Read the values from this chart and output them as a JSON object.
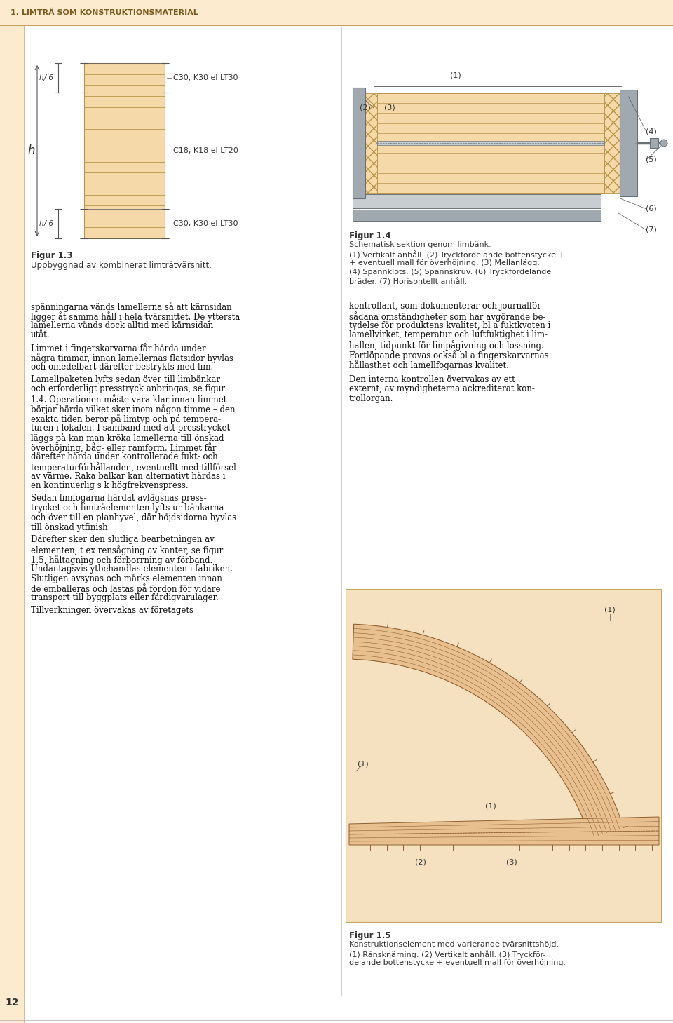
{
  "page_bg": "#ffffff",
  "header_bg": "#fdebd0",
  "header_text": "1. LIMTRÄ SOM KONSTRUKTIONSMATERIAL",
  "header_text_color": "#7a5c1e",
  "sidebar_bg": "#fdebd0",
  "page_number": "12",
  "wood_fill": "#f5d9a8",
  "wood_line": "#b8954a",
  "wood_fill_fig5": "#e8c090",
  "gray_fill": "#a0a8b0",
  "gray_dark": "#6a7278",
  "gray_light": "#c8cdd2",
  "figure1_3_caption_title": "Figur 1.3",
  "figure1_3_caption": "Uppbyggnad av kombinerat limträtvärsnitt.",
  "figure1_4_caption_title": "Figur 1.4",
  "figure1_4_caption_line1": "Schematisk sektion genom limbänk.",
  "figure1_4_caption_line2": "(1) Vertikalt anhåll. (2) Tryckfördelande bottenstycke +",
  "figure1_4_caption_line3": "+ eventuell mall för överhöjning. (3) Mellanlägg.",
  "figure1_4_caption_line4": "(4) Spännklots. (5) Spännskruv. (6) Tryckfördelande",
  "figure1_4_caption_line5": "bräder. (7) Horisontellt anhåll.",
  "figure1_5_caption_title": "Figur 1.5",
  "figure1_5_caption_line1": "Konstruktionselement med varierande tvärsnittshöjd.",
  "figure1_5_caption_line2": "(1) Ränsknärning. (2) Vertikalt anhåll. (3) Tryckför-",
  "figure1_5_caption_line3": "delande bottenstycke + eventuell mall för överhöjning.",
  "left_col_para1": "spänningarna vänds lamellerna så att kärnsidan\nligger åt samma håll i hela tvärsnittet. De yttersta\nlamellerna vänds dock alltid med kärnsidan\nutåt.",
  "left_col_para2": "Limmet i fingerskarvarna får härda under\nnågra timmar, innan lamellernas flatsidor hyvlas\noch omedelbart därefter bestrykts med lim.",
  "left_col_para3": "Lamellpaketen lyfts sedan över till limbänkar\noch erforderligt presstryck anbringas, se figur\n1.4. Operationen måste vara klar innan limmet\nbörjar härda vilket sker inom någon timme – den\nexakta tiden beror på limtyp och på tempera-\nturen i lokalen. I samband med att presstrycket\nläggs på kan man kröka lamellerna till önskad\növerhöjning, båg- eller ramform. Limmet får\ndärefter härda under kontrollerade fukt- och\ntemperaturförhållanden, eventuellt med tillförsel\nav värme. Raka balkar kan alternativt härdas i\nen kontinuerlig s k högfrekvenspress.",
  "left_col_para4": "Sedan limfogarna härdat avlägsnas press-\ntrycket och limträelementen lyfts ur bänkarna\noch över till en planhyvel, där höjdsidorna hyvlas\ntill önskad ytfinish.",
  "left_col_para5": "Därefter sker den slutliga bearbetningen av\nelementen, t ex rensågning av kanter, se figur\n1.5, håltagning och förborrning av förband.\nUndantagsvis ytbehandlas elementen i fabriken.\nSlutligen avsynas och märks elementen innan\nde emballeras och lastas på fordon för vidare\ntransport till byggplats eller färdigvarulager.",
  "left_col_para6": "Tillverkningen övervakas av företagets",
  "right_col_para1": "kontrollant, som dokumenterar och journalför\nsådana omständigheter som har avgörande be-\ntydelse för produktens kvalitet, bl a fuktkvoten i\nlamellvirket, temperatur och luftfuktighet i lim-\nhallen, tidpunkt för limpågivning och lossning.\nFortlöpande provas också bl a fingerskarvarnas\nhållasthet och lamellfogarnas kvalitet.",
  "right_col_para2": "Den interna kontrollen övervakas av ett\nexternt, av myndigheterna ackrediterat kon-\ntrollorgan."
}
